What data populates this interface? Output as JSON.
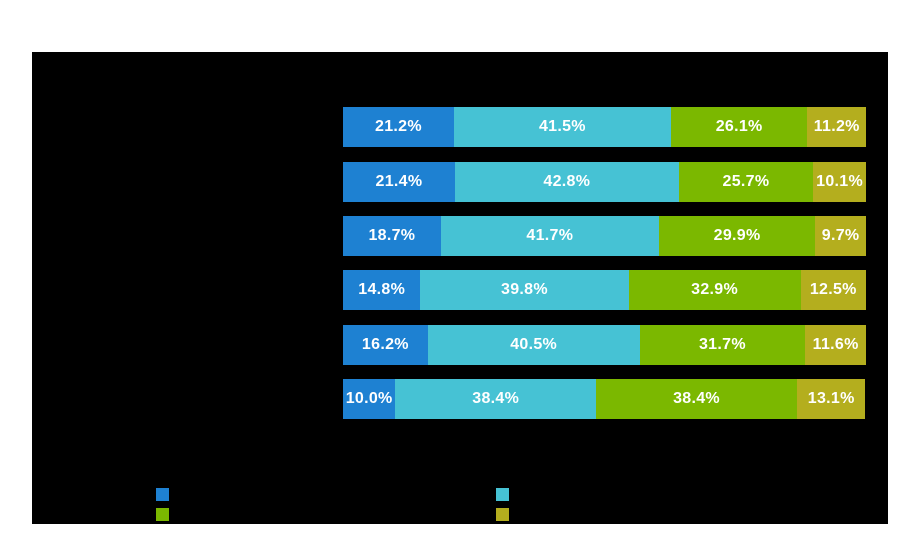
{
  "chart_data": {
    "type": "bar",
    "stacked": true,
    "orientation": "horizontal",
    "title": "",
    "xlabel": "",
    "ylabel": "",
    "categories": [
      "",
      "",
      "",
      "",
      "",
      ""
    ],
    "series": [
      {
        "name": "series-blue",
        "color": "#1e81d2",
        "values": [
          21.2,
          21.4,
          18.7,
          14.8,
          16.2,
          10.0
        ]
      },
      {
        "name": "series-cyan",
        "color": "#46c2d4",
        "values": [
          41.5,
          42.8,
          41.7,
          39.8,
          40.5,
          38.4
        ]
      },
      {
        "name": "series-green",
        "color": "#7bb800",
        "values": [
          26.1,
          25.7,
          29.9,
          32.9,
          31.7,
          38.4
        ]
      },
      {
        "name": "series-olive",
        "color": "#b4ae1e",
        "values": [
          11.2,
          10.1,
          9.7,
          12.5,
          11.6,
          13.1
        ]
      }
    ],
    "value_labels": [
      [
        "21.2%",
        "41.5%",
        "26.1%",
        "11.2%"
      ],
      [
        "21.4%",
        "42.8%",
        "25.7%",
        "10.1%"
      ],
      [
        "18.7%",
        "41.7%",
        "29.9%",
        "9.7%"
      ],
      [
        "14.8%",
        "39.8%",
        "32.9%",
        "12.5%"
      ],
      [
        "16.2%",
        "40.5%",
        "31.7%",
        "11.6%"
      ],
      [
        "10.0%",
        "38.4%",
        "38.4%",
        "13.1%"
      ]
    ],
    "xlim": [
      0,
      100
    ],
    "grid": false,
    "legend": {
      "position": "bottom",
      "entries": [
        {
          "name": "legend-swatch-blue",
          "swatch_color": "#1e81d2"
        },
        {
          "name": "legend-swatch-cyan",
          "swatch_color": "#46c2d4"
        },
        {
          "name": "legend-swatch-green",
          "swatch_color": "#7bb800"
        },
        {
          "name": "legend-swatch-olive",
          "swatch_color": "#b4ae1e"
        }
      ]
    },
    "colors": {
      "plot_background": "#000000",
      "page_background": "#ffffff",
      "value_label_text": "#ffffff"
    }
  }
}
